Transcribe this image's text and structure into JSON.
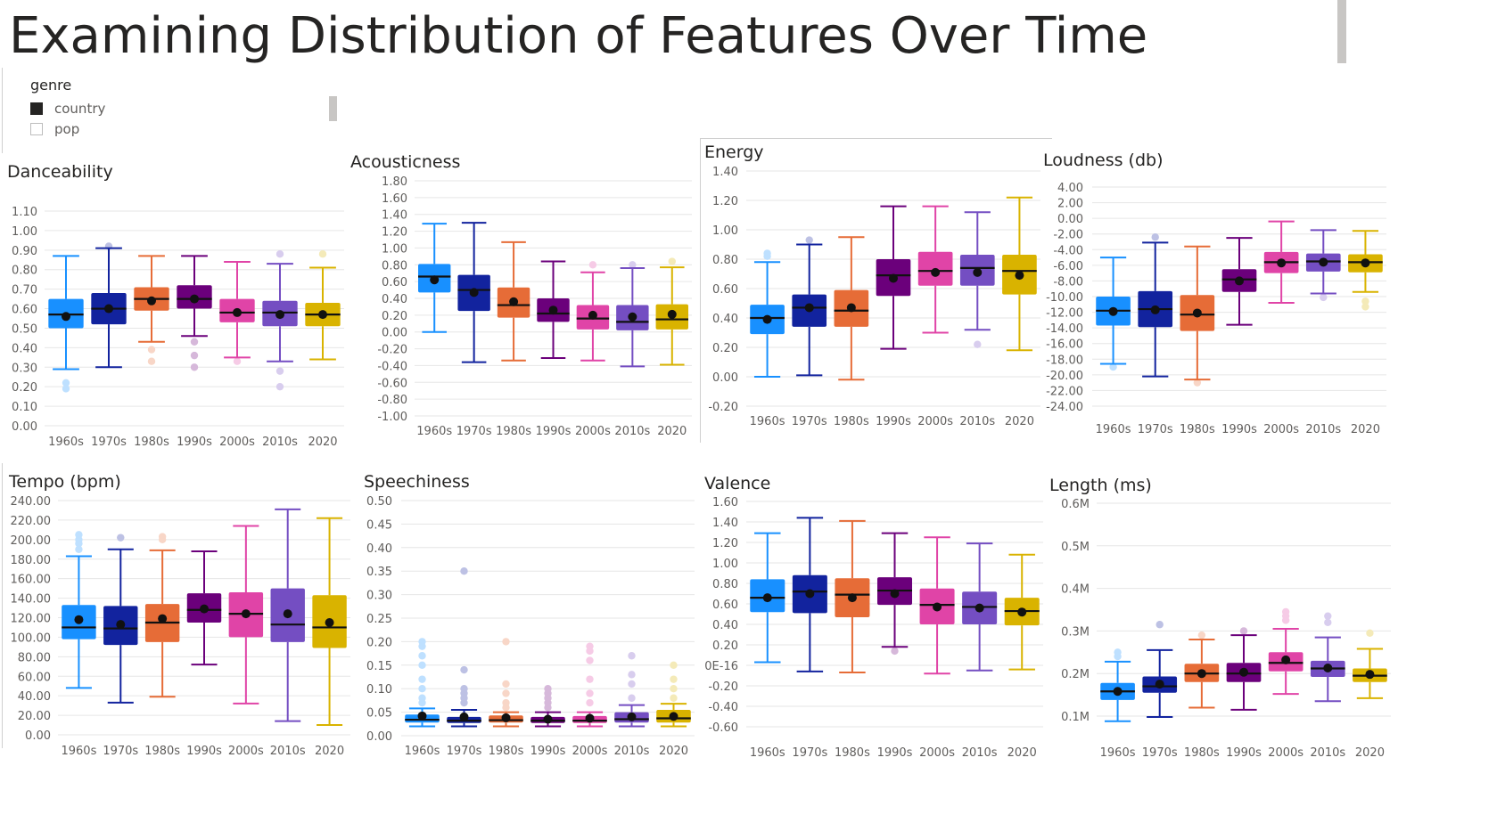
{
  "title": "Examining Distribution of Features Over Time",
  "legend": {
    "title": "genre",
    "items": [
      {
        "label": "country",
        "selected": true
      },
      {
        "label": "pop",
        "selected": false
      }
    ]
  },
  "colors": [
    "#1890ff",
    "#12239e",
    "#e66c37",
    "#6b007b",
    "#e044a7",
    "#744ec2",
    "#d9b300"
  ],
  "chart_data": [
    {
      "type": "boxplot",
      "title": "Danceability",
      "categories": [
        "1960s",
        "1970s",
        "1980s",
        "1990s",
        "2000s",
        "2010s",
        "2020"
      ],
      "yticks": [
        "0.00",
        "0.10",
        "0.20",
        "0.30",
        "0.40",
        "0.50",
        "0.60",
        "0.70",
        "0.80",
        "0.90",
        "1.00",
        "1.10"
      ],
      "ylim": [
        0,
        1.1
      ],
      "boxes": [
        {
          "min": 0.29,
          "q1": 0.5,
          "median": 0.57,
          "q3": 0.65,
          "max": 0.87,
          "mean": 0.56,
          "outliers": [
            0.19,
            0.22
          ]
        },
        {
          "min": 0.3,
          "q1": 0.52,
          "median": 0.6,
          "q3": 0.68,
          "max": 0.91,
          "mean": 0.6,
          "outliers": [
            0.92
          ]
        },
        {
          "min": 0.43,
          "q1": 0.59,
          "median": 0.65,
          "q3": 0.71,
          "max": 0.87,
          "mean": 0.64,
          "outliers": [
            0.33,
            0.39
          ]
        },
        {
          "min": 0.46,
          "q1": 0.6,
          "median": 0.65,
          "q3": 0.72,
          "max": 0.87,
          "mean": 0.65,
          "outliers": [
            0.3,
            0.36,
            0.43
          ]
        },
        {
          "min": 0.35,
          "q1": 0.53,
          "median": 0.58,
          "q3": 0.65,
          "max": 0.84,
          "mean": 0.58,
          "outliers": [
            0.33
          ]
        },
        {
          "min": 0.33,
          "q1": 0.51,
          "median": 0.58,
          "q3": 0.64,
          "max": 0.83,
          "mean": 0.57,
          "outliers": [
            0.2,
            0.28,
            0.88
          ]
        },
        {
          "min": 0.34,
          "q1": 0.51,
          "median": 0.57,
          "q3": 0.63,
          "max": 0.81,
          "mean": 0.57,
          "outliers": [
            0.88
          ]
        }
      ]
    },
    {
      "type": "boxplot",
      "title": "Acousticness",
      "categories": [
        "1960s",
        "1970s",
        "1980s",
        "1990s",
        "2000s",
        "2010s",
        "2020"
      ],
      "yticks": [
        "-1.00",
        "-0.80",
        "-0.60",
        "-0.40",
        "-0.20",
        "0.00",
        "0.20",
        "0.40",
        "0.60",
        "0.80",
        "1.00",
        "1.20",
        "1.40",
        "1.60",
        "1.80"
      ],
      "ylim": [
        -1.0,
        1.8
      ],
      "boxes": [
        {
          "min": 0.0,
          "q1": 0.47,
          "median": 0.66,
          "q3": 0.81,
          "max": 1.29,
          "mean": 0.62,
          "outliers": []
        },
        {
          "min": -0.36,
          "q1": 0.25,
          "median": 0.5,
          "q3": 0.68,
          "max": 1.3,
          "mean": 0.47,
          "outliers": []
        },
        {
          "min": -0.34,
          "q1": 0.17,
          "median": 0.32,
          "q3": 0.53,
          "max": 1.07,
          "mean": 0.36,
          "outliers": []
        },
        {
          "min": -0.31,
          "q1": 0.12,
          "median": 0.22,
          "q3": 0.4,
          "max": 0.84,
          "mean": 0.26,
          "outliers": []
        },
        {
          "min": -0.34,
          "q1": 0.03,
          "median": 0.16,
          "q3": 0.32,
          "max": 0.71,
          "mean": 0.2,
          "outliers": [
            0.8
          ]
        },
        {
          "min": -0.41,
          "q1": 0.02,
          "median": 0.12,
          "q3": 0.32,
          "max": 0.76,
          "mean": 0.18,
          "outliers": [
            0.8
          ]
        },
        {
          "min": -0.39,
          "q1": 0.03,
          "median": 0.15,
          "q3": 0.33,
          "max": 0.77,
          "mean": 0.21,
          "outliers": [
            0.84
          ]
        }
      ]
    },
    {
      "type": "boxplot",
      "title": "Energy",
      "categories": [
        "1960s",
        "1970s",
        "1980s",
        "1990s",
        "2000s",
        "2010s",
        "2020"
      ],
      "yticks": [
        "-0.20",
        "0.00",
        "0.20",
        "0.40",
        "0.60",
        "0.80",
        "1.00",
        "1.20",
        "1.40"
      ],
      "ylim": [
        -0.2,
        1.4
      ],
      "boxes": [
        {
          "min": 0.0,
          "q1": 0.29,
          "median": 0.4,
          "q3": 0.49,
          "max": 0.78,
          "mean": 0.39,
          "outliers": [
            0.82,
            0.84
          ]
        },
        {
          "min": 0.01,
          "q1": 0.34,
          "median": 0.47,
          "q3": 0.56,
          "max": 0.9,
          "mean": 0.47,
          "outliers": [
            0.93
          ]
        },
        {
          "min": -0.02,
          "q1": 0.34,
          "median": 0.45,
          "q3": 0.59,
          "max": 0.95,
          "mean": 0.47,
          "outliers": []
        },
        {
          "min": 0.19,
          "q1": 0.55,
          "median": 0.69,
          "q3": 0.8,
          "max": 1.16,
          "mean": 0.67,
          "outliers": []
        },
        {
          "min": 0.3,
          "q1": 0.62,
          "median": 0.72,
          "q3": 0.85,
          "max": 1.16,
          "mean": 0.71,
          "outliers": []
        },
        {
          "min": 0.32,
          "q1": 0.62,
          "median": 0.74,
          "q3": 0.83,
          "max": 1.12,
          "mean": 0.71,
          "outliers": [
            0.22
          ]
        },
        {
          "min": 0.18,
          "q1": 0.56,
          "median": 0.72,
          "q3": 0.83,
          "max": 1.22,
          "mean": 0.69,
          "outliers": []
        }
      ]
    },
    {
      "type": "boxplot",
      "title": "Loudness (db)",
      "categories": [
        "1960s",
        "1970s",
        "1980s",
        "1990s",
        "2000s",
        "2010s",
        "2020"
      ],
      "yticks": [
        "-24.00",
        "-22.00",
        "-20.00",
        "-18.00",
        "-16.00",
        "-14.00",
        "-12.00",
        "-10.00",
        "-8.00",
        "-6.00",
        "-4.00",
        "-2.00",
        "0.00",
        "2.00",
        "4.00"
      ],
      "ylim": [
        -24,
        4
      ],
      "boxes": [
        {
          "min": -18.6,
          "q1": -13.7,
          "median": -11.8,
          "q3": -10.0,
          "max": -5.0,
          "mean": -11.9,
          "outliers": [
            -19.0
          ]
        },
        {
          "min": -20.2,
          "q1": -13.9,
          "median": -11.6,
          "q3": -9.3,
          "max": -3.1,
          "mean": -11.7,
          "outliers": [
            -2.4
          ]
        },
        {
          "min": -20.6,
          "q1": -14.4,
          "median": -12.3,
          "q3": -9.8,
          "max": -3.6,
          "mean": -12.1,
          "outliers": [
            -21.0
          ]
        },
        {
          "min": -13.6,
          "q1": -9.4,
          "median": -7.8,
          "q3": -6.5,
          "max": -2.5,
          "mean": -8.0,
          "outliers": []
        },
        {
          "min": -10.8,
          "q1": -7.0,
          "median": -5.6,
          "q3": -4.3,
          "max": -0.4,
          "mean": -5.7,
          "outliers": []
        },
        {
          "min": -9.6,
          "q1": -6.8,
          "median": -5.5,
          "q3": -4.5,
          "max": -1.5,
          "mean": -5.6,
          "outliers": [
            -10.1
          ]
        },
        {
          "min": -9.4,
          "q1": -6.9,
          "median": -5.6,
          "q3": -4.6,
          "max": -1.6,
          "mean": -5.7,
          "outliers": [
            -10.6,
            -11.3
          ]
        }
      ]
    },
    {
      "type": "boxplot",
      "title": "Tempo (bpm)",
      "categories": [
        "1960s",
        "1970s",
        "1980s",
        "1990s",
        "2000s",
        "2010s",
        "2020"
      ],
      "yticks": [
        "0.00",
        "20.00",
        "40.00",
        "60.00",
        "80.00",
        "100.00",
        "120.00",
        "140.00",
        "160.00",
        "180.00",
        "200.00",
        "220.00",
        "240.00"
      ],
      "ylim": [
        0,
        240
      ],
      "boxes": [
        {
          "min": 48,
          "q1": 98,
          "median": 110,
          "q3": 133,
          "max": 183,
          "mean": 118,
          "outliers": [
            190,
            196,
            200,
            205
          ]
        },
        {
          "min": 33,
          "q1": 92,
          "median": 109,
          "q3": 132,
          "max": 190,
          "mean": 113,
          "outliers": [
            202
          ]
        },
        {
          "min": 39,
          "q1": 95,
          "median": 115,
          "q3": 134,
          "max": 189,
          "mean": 119,
          "outliers": [
            200,
            203
          ]
        },
        {
          "min": 72,
          "q1": 115,
          "median": 128,
          "q3": 145,
          "max": 188,
          "mean": 129,
          "outliers": []
        },
        {
          "min": 32,
          "q1": 100,
          "median": 124,
          "q3": 146,
          "max": 214,
          "mean": 124,
          "outliers": []
        },
        {
          "min": 14,
          "q1": 95,
          "median": 113,
          "q3": 150,
          "max": 231,
          "mean": 124,
          "outliers": []
        },
        {
          "min": 10,
          "q1": 89,
          "median": 110,
          "q3": 143,
          "max": 222,
          "mean": 115,
          "outliers": []
        }
      ]
    },
    {
      "type": "boxplot",
      "title": "Speechiness",
      "categories": [
        "1960s",
        "1970s",
        "1980s",
        "1990s",
        "2000s",
        "2010s",
        "2020"
      ],
      "yticks": [
        "0.00",
        "0.05",
        "0.10",
        "0.15",
        "0.20",
        "0.25",
        "0.30",
        "0.35",
        "0.40",
        "0.45",
        "0.50"
      ],
      "ylim": [
        0,
        0.5
      ],
      "boxes": [
        {
          "min": 0.02,
          "q1": 0.028,
          "median": 0.034,
          "q3": 0.045,
          "max": 0.058,
          "mean": 0.042,
          "outliers": [
            0.07,
            0.08,
            0.1,
            0.12,
            0.15,
            0.17,
            0.19,
            0.2
          ]
        },
        {
          "min": 0.02,
          "q1": 0.027,
          "median": 0.032,
          "q3": 0.04,
          "max": 0.055,
          "mean": 0.04,
          "outliers": [
            0.07,
            0.08,
            0.09,
            0.1,
            0.14,
            0.35
          ]
        },
        {
          "min": 0.02,
          "q1": 0.028,
          "median": 0.033,
          "q3": 0.043,
          "max": 0.05,
          "mean": 0.038,
          "outliers": [
            0.06,
            0.07,
            0.09,
            0.11,
            0.2
          ]
        },
        {
          "min": 0.02,
          "q1": 0.027,
          "median": 0.032,
          "q3": 0.04,
          "max": 0.05,
          "mean": 0.035,
          "outliers": [
            0.06,
            0.07,
            0.08,
            0.09,
            0.1
          ]
        },
        {
          "min": 0.02,
          "q1": 0.027,
          "median": 0.032,
          "q3": 0.042,
          "max": 0.05,
          "mean": 0.037,
          "outliers": [
            0.07,
            0.09,
            0.12,
            0.16,
            0.18,
            0.19
          ]
        },
        {
          "min": 0.02,
          "q1": 0.028,
          "median": 0.035,
          "q3": 0.05,
          "max": 0.065,
          "mean": 0.04,
          "outliers": [
            0.08,
            0.11,
            0.13,
            0.17
          ]
        },
        {
          "min": 0.02,
          "q1": 0.028,
          "median": 0.037,
          "q3": 0.055,
          "max": 0.068,
          "mean": 0.041,
          "outliers": [
            0.08,
            0.1,
            0.12,
            0.15
          ]
        }
      ]
    },
    {
      "type": "boxplot",
      "title": "Valence",
      "categories": [
        "1960s",
        "1970s",
        "1980s",
        "1990s",
        "2000s",
        "2010s",
        "2020"
      ],
      "yticks": [
        "-0.60",
        "-0.40",
        "-0.20",
        "0E-16",
        "0.20",
        "0.40",
        "0.60",
        "0.80",
        "1.00",
        "1.20",
        "1.40",
        "1.60"
      ],
      "ylim": [
        -0.6,
        1.6
      ],
      "boxes": [
        {
          "min": 0.03,
          "q1": 0.52,
          "median": 0.66,
          "q3": 0.84,
          "max": 1.29,
          "mean": 0.66,
          "outliers": []
        },
        {
          "min": -0.06,
          "q1": 0.51,
          "median": 0.72,
          "q3": 0.88,
          "max": 1.44,
          "mean": 0.7,
          "outliers": []
        },
        {
          "min": -0.07,
          "q1": 0.47,
          "median": 0.69,
          "q3": 0.85,
          "max": 1.41,
          "mean": 0.66,
          "outliers": []
        },
        {
          "min": 0.18,
          "q1": 0.59,
          "median": 0.73,
          "q3": 0.86,
          "max": 1.29,
          "mean": 0.7,
          "outliers": [
            0.14
          ]
        },
        {
          "min": -0.08,
          "q1": 0.4,
          "median": 0.59,
          "q3": 0.75,
          "max": 1.25,
          "mean": 0.57,
          "outliers": []
        },
        {
          "min": -0.05,
          "q1": 0.4,
          "median": 0.57,
          "q3": 0.72,
          "max": 1.19,
          "mean": 0.56,
          "outliers": []
        },
        {
          "min": -0.04,
          "q1": 0.39,
          "median": 0.53,
          "q3": 0.66,
          "max": 1.08,
          "mean": 0.52,
          "outliers": []
        }
      ]
    },
    {
      "type": "boxplot",
      "title": "Length (ms)",
      "categories": [
        "1960s",
        "1970s",
        "1980s",
        "1990s",
        "2000s",
        "2010s",
        "2020"
      ],
      "yticks": [
        "0.1M",
        "0.2M",
        "0.3M",
        "0.4M",
        "0.5M",
        "0.6M"
      ],
      "ylim": [
        0.1,
        0.6
      ],
      "boxes": [
        {
          "min": 0.088,
          "q1": 0.138,
          "median": 0.158,
          "q3": 0.178,
          "max": 0.228,
          "mean": 0.158,
          "outliers": [
            0.24,
            0.25
          ]
        },
        {
          "min": 0.098,
          "q1": 0.155,
          "median": 0.17,
          "q3": 0.193,
          "max": 0.255,
          "mean": 0.175,
          "outliers": [
            0.315
          ]
        },
        {
          "min": 0.12,
          "q1": 0.18,
          "median": 0.2,
          "q3": 0.223,
          "max": 0.28,
          "mean": 0.2,
          "outliers": [
            0.29
          ]
        },
        {
          "min": 0.115,
          "q1": 0.18,
          "median": 0.2,
          "q3": 0.225,
          "max": 0.29,
          "mean": 0.203,
          "outliers": [
            0.3
          ]
        },
        {
          "min": 0.152,
          "q1": 0.205,
          "median": 0.225,
          "q3": 0.25,
          "max": 0.305,
          "mean": 0.232,
          "outliers": [
            0.325,
            0.335,
            0.345
          ]
        },
        {
          "min": 0.135,
          "q1": 0.192,
          "median": 0.212,
          "q3": 0.23,
          "max": 0.285,
          "mean": 0.213,
          "outliers": [
            0.32,
            0.335
          ]
        },
        {
          "min": 0.142,
          "q1": 0.18,
          "median": 0.195,
          "q3": 0.212,
          "max": 0.258,
          "mean": 0.198,
          "outliers": [
            0.295
          ]
        }
      ]
    }
  ]
}
